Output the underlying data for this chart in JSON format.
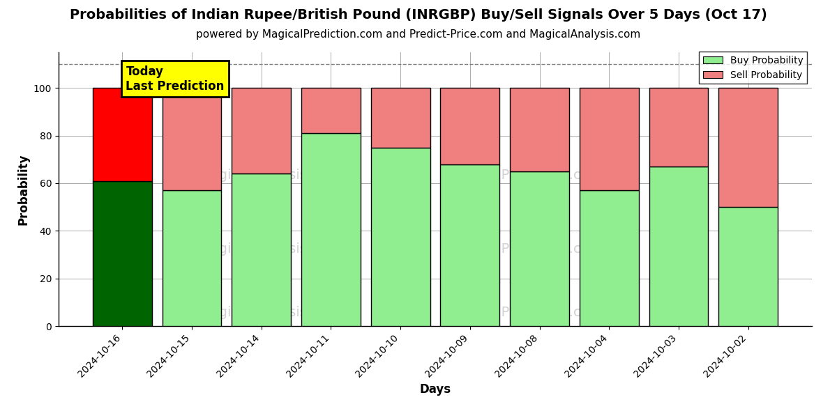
{
  "title": "Probabilities of Indian Rupee/British Pound (INRGBP) Buy/Sell Signals Over 5 Days (Oct 17)",
  "subtitle": "powered by MagicalPrediction.com and Predict-Price.com and MagicalAnalysis.com",
  "xlabel": "Days",
  "ylabel": "Probability",
  "categories": [
    "2024-10-16",
    "2024-10-15",
    "2024-10-14",
    "2024-10-11",
    "2024-10-10",
    "2024-10-09",
    "2024-10-08",
    "2024-10-04",
    "2024-10-03",
    "2024-10-02"
  ],
  "buy_values": [
    61,
    57,
    64,
    81,
    75,
    68,
    65,
    57,
    67,
    50
  ],
  "sell_values": [
    39,
    43,
    36,
    19,
    25,
    32,
    35,
    43,
    33,
    50
  ],
  "today_buy_color": "#006400",
  "today_sell_color": "#FF0000",
  "buy_color": "#90EE90",
  "sell_color": "#F08080",
  "today_label_bg": "#FFFF00",
  "today_label_text": "Today\nLast Prediction",
  "legend_buy": "Buy Probability",
  "legend_sell": "Sell Probability",
  "ylim": [
    0,
    115
  ],
  "yticks": [
    0,
    20,
    40,
    60,
    80,
    100
  ],
  "bar_width": 0.85,
  "edgecolor": "#000000",
  "grid_color": "#aaaaaa",
  "background_color": "#ffffff",
  "title_fontsize": 14,
  "subtitle_fontsize": 11,
  "dashed_line_y": 110
}
